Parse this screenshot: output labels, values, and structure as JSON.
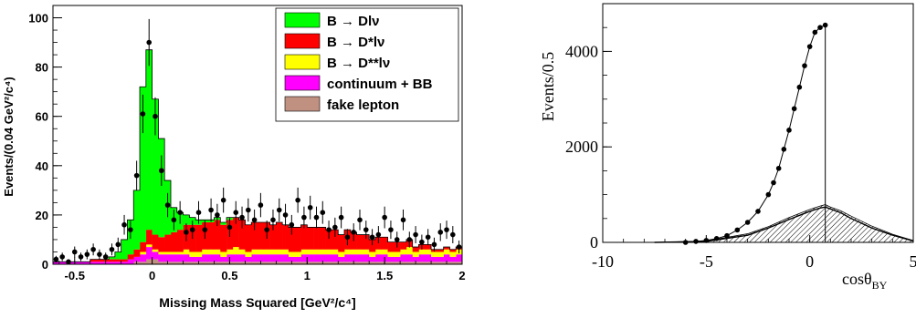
{
  "chart_data": [
    {
      "type": "histogram",
      "title": "",
      "xlabel": "Missing Mass Squared [GeV²/c⁴]",
      "ylabel": "Events/(0.04 GeV²/c⁴)",
      "xlim": [
        -0.64,
        2.0
      ],
      "ylim": [
        0,
        105
      ],
      "x_ticks": [
        -0.5,
        0,
        0.5,
        1,
        1.5,
        2
      ],
      "x_tick_labels": [
        "-0.5",
        "0",
        "0.5",
        "1",
        "1.5",
        "2"
      ],
      "y_ticks": [
        0,
        20,
        40,
        60,
        80,
        100
      ],
      "y_tick_labels": [
        "0",
        "20",
        "40",
        "60",
        "80",
        "100"
      ],
      "bin_width": 0.04,
      "stacked": true,
      "legend_position": "top-right",
      "x_bin_centers": [
        -0.62,
        -0.58,
        -0.54,
        -0.5,
        -0.46,
        -0.42,
        -0.38,
        -0.34,
        -0.3,
        -0.26,
        -0.22,
        -0.18,
        -0.14,
        -0.1,
        -0.06,
        -0.02,
        0.02,
        0.06,
        0.1,
        0.14,
        0.18,
        0.22,
        0.26,
        0.3,
        0.34,
        0.38,
        0.42,
        0.46,
        0.5,
        0.54,
        0.58,
        0.62,
        0.66,
        0.7,
        0.74,
        0.78,
        0.82,
        0.86,
        0.9,
        0.94,
        0.98,
        1.02,
        1.06,
        1.1,
        1.14,
        1.18,
        1.22,
        1.26,
        1.3,
        1.34,
        1.38,
        1.42,
        1.46,
        1.5,
        1.54,
        1.58,
        1.62,
        1.66,
        1.7,
        1.74,
        1.78,
        1.82,
        1.86,
        1.9,
        1.94,
        1.98
      ],
      "series": [
        {
          "name": "fake lepton",
          "color": "#c09080",
          "values": [
            0,
            0,
            0,
            0,
            0,
            0,
            0,
            0,
            0,
            0,
            0,
            0,
            0,
            1,
            1,
            2,
            2,
            1,
            1,
            1,
            1,
            1,
            1,
            1,
            1,
            1,
            1,
            1,
            1,
            1,
            1,
            1,
            1,
            1,
            1,
            1,
            1,
            1,
            1,
            1,
            1,
            1,
            1,
            1,
            1,
            1,
            1,
            1,
            1,
            1,
            1,
            1,
            1,
            1,
            1,
            1,
            1,
            1,
            1,
            1,
            1,
            1,
            1,
            1,
            1,
            1
          ]
        },
        {
          "name": "continuum + BB",
          "color": "#ff00ff",
          "values": [
            1,
            1,
            1,
            1,
            1,
            1,
            1,
            1,
            1,
            1,
            1,
            1,
            2,
            2,
            3,
            5,
            3,
            3,
            3,
            3,
            3,
            3,
            2,
            2,
            3,
            3,
            3,
            2,
            3,
            3,
            3,
            2,
            3,
            3,
            3,
            3,
            3,
            3,
            2,
            2,
            3,
            3,
            3,
            3,
            3,
            3,
            2,
            3,
            3,
            3,
            3,
            2,
            3,
            3,
            2,
            2,
            3,
            3,
            2,
            3,
            3,
            2,
            2,
            3,
            2,
            3
          ]
        },
        {
          "name": "B → D**lν",
          "color": "#ffff00",
          "values": [
            0,
            0,
            0,
            0,
            0,
            0,
            0,
            0,
            0,
            0,
            0,
            0,
            0,
            0,
            1,
            1,
            1,
            1,
            1,
            1,
            1,
            2,
            2,
            2,
            2,
            2,
            2,
            2,
            2,
            3,
            2,
            2,
            2,
            2,
            2,
            2,
            2,
            2,
            2,
            2,
            2,
            2,
            2,
            2,
            2,
            2,
            2,
            2,
            2,
            2,
            2,
            2,
            2,
            2,
            2,
            2,
            2,
            3,
            2,
            2,
            2,
            2,
            2,
            2,
            2,
            2
          ]
        },
        {
          "name": "B → D*lν",
          "color": "#ff0000",
          "values": [
            0,
            0,
            0,
            0,
            0,
            0,
            1,
            1,
            1,
            1,
            1,
            1,
            2,
            3,
            4,
            6,
            6,
            6,
            7,
            8,
            9,
            10,
            11,
            11,
            11,
            11,
            12,
            11,
            12,
            12,
            12,
            11,
            11,
            11,
            11,
            10,
            11,
            10,
            10,
            10,
            10,
            9,
            9,
            9,
            8,
            8,
            7,
            8,
            7,
            6,
            6,
            5,
            5,
            5,
            4,
            4,
            3,
            3,
            2,
            2,
            2,
            1,
            1,
            1,
            1,
            1
          ]
        },
        {
          "name": "B → Dlν",
          "color": "#00ff00",
          "values": [
            0,
            0,
            0,
            0,
            0,
            0,
            0,
            0,
            0,
            1,
            3,
            8,
            14,
            24,
            63,
            73,
            55,
            40,
            22,
            10,
            7,
            4,
            3,
            2,
            1,
            1,
            1,
            1,
            1,
            0,
            0,
            0,
            0,
            0,
            0,
            0,
            0,
            0,
            0,
            0,
            0,
            0,
            0,
            0,
            0,
            0,
            0,
            0,
            0,
            0,
            0,
            0,
            0,
            0,
            0,
            0,
            0,
            0,
            0,
            0,
            0,
            0,
            0,
            0,
            0,
            0
          ]
        }
      ],
      "data_points": {
        "x": [
          -0.62,
          -0.58,
          -0.54,
          -0.5,
          -0.46,
          -0.42,
          -0.38,
          -0.34,
          -0.3,
          -0.26,
          -0.22,
          -0.18,
          -0.14,
          -0.1,
          -0.06,
          -0.02,
          0.02,
          0.06,
          0.1,
          0.14,
          0.18,
          0.22,
          0.26,
          0.3,
          0.34,
          0.38,
          0.42,
          0.46,
          0.5,
          0.54,
          0.58,
          0.62,
          0.66,
          0.7,
          0.74,
          0.78,
          0.82,
          0.86,
          0.9,
          0.94,
          0.98,
          1.02,
          1.06,
          1.1,
          1.14,
          1.18,
          1.22,
          1.26,
          1.3,
          1.34,
          1.38,
          1.42,
          1.46,
          1.5,
          1.54,
          1.58,
          1.62,
          1.66,
          1.7,
          1.74,
          1.78,
          1.82,
          1.86,
          1.9,
          1.94,
          1.98
        ],
        "y": [
          2,
          3,
          1,
          5,
          3,
          4,
          6,
          4,
          3,
          6,
          8,
          16,
          14,
          36,
          61,
          90,
          60,
          38,
          24,
          18,
          21,
          13,
          14,
          21,
          14,
          22,
          20,
          26,
          15,
          21,
          19,
          22,
          18,
          24,
          14,
          18,
          22,
          20,
          16,
          26,
          19,
          23,
          19,
          21,
          14,
          15,
          19,
          11,
          13,
          18,
          14,
          11,
          12,
          19,
          14,
          10,
          18,
          10,
          12,
          9,
          11,
          8,
          13,
          14,
          12,
          7
        ],
        "err": [
          1.4,
          1.7,
          1,
          2.2,
          1.7,
          2,
          2.4,
          2,
          1.7,
          2.4,
          2.8,
          4,
          3.7,
          6,
          7.8,
          9.5,
          7.7,
          6.2,
          4.9,
          4.2,
          4.6,
          3.6,
          3.7,
          4.6,
          3.7,
          4.7,
          4.5,
          5.1,
          3.9,
          4.6,
          4.4,
          4.7,
          4.2,
          4.9,
          3.7,
          4.2,
          4.7,
          4.5,
          4,
          5.1,
          4.4,
          4.8,
          4.4,
          4.6,
          3.7,
          3.9,
          4.4,
          3.3,
          3.6,
          4.2,
          3.7,
          3.3,
          3.5,
          4.4,
          3.7,
          3.2,
          4.2,
          3.2,
          3.5,
          3,
          3.3,
          2.8,
          3.6,
          3.7,
          3.5,
          2.6
        ]
      }
    },
    {
      "type": "histogram",
      "title": "",
      "xlabel": "cosθ",
      "xlabel_sub": "BY",
      "ylabel": "Events/0.5",
      "xlim": [
        -10,
        5
      ],
      "ylim": [
        0,
        5000
      ],
      "x_ticks": [
        -10,
        -5,
        0,
        5
      ],
      "x_tick_labels": [
        "-10",
        "-5",
        "0",
        "5"
      ],
      "y_ticks": [
        0,
        2000,
        4000
      ],
      "y_tick_labels": [
        "0",
        "2000",
        "4000"
      ],
      "data": {
        "x": [
          -6,
          -5.5,
          -5,
          -4.5,
          -4,
          -3.5,
          -3,
          -2.5,
          -2,
          -1.75,
          -1.5,
          -1.25,
          -1,
          -0.75,
          -0.5,
          -0.25,
          0,
          0.25,
          0.5,
          0.75
        ],
        "y": [
          0,
          20,
          40,
          80,
          140,
          260,
          420,
          650,
          1000,
          1250,
          1550,
          1950,
          2350,
          2800,
          3250,
          3700,
          4100,
          4400,
          4500,
          4550
        ]
      },
      "signal_line": {
        "x": [
          -7.5,
          -5,
          -3,
          -2,
          -1,
          0,
          0.5,
          0.75,
          1,
          1.5,
          2,
          3,
          4,
          5
        ],
        "y": [
          0,
          20,
          150,
          300,
          480,
          650,
          720,
          740,
          700,
          620,
          500,
          300,
          150,
          30
        ]
      },
      "background_band": {
        "x": [
          -7.5,
          -5,
          -3,
          -2,
          -1,
          0,
          0.5,
          0.75,
          1,
          1.5,
          2,
          3,
          4,
          5
        ],
        "y": [
          0,
          30,
          180,
          330,
          520,
          690,
          760,
          790,
          740,
          660,
          550,
          340,
          170,
          40
        ]
      }
    }
  ]
}
